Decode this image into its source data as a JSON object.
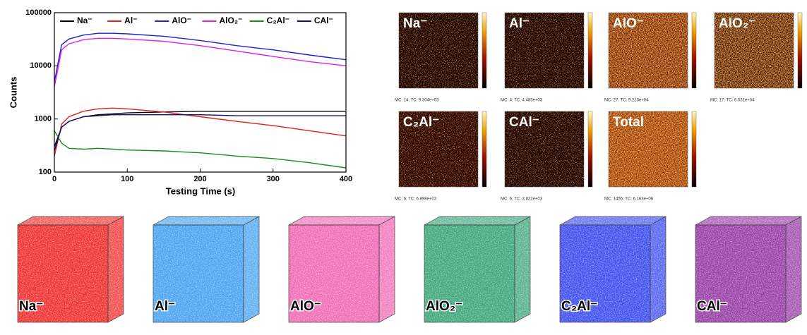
{
  "chart_data": {
    "type": "line",
    "x_label": "Testing Time (s)",
    "y_label": "Counts",
    "log_y": true,
    "legend": "top",
    "grid": false,
    "xlim": [
      0,
      400
    ],
    "xticks": [
      0,
      100,
      200,
      300,
      400
    ],
    "ylim": [
      100,
      100000
    ],
    "yticks": [
      100,
      1000,
      10000,
      100000
    ],
    "x": [
      0,
      10,
      20,
      40,
      60,
      80,
      100,
      150,
      200,
      250,
      300,
      350,
      400
    ],
    "series": [
      {
        "name": "Na⁻",
        "color": "#000000",
        "values": [
          300,
          700,
          900,
          1100,
          1200,
          1250,
          1300,
          1350,
          1400,
          1400,
          1400,
          1400,
          1400
        ]
      },
      {
        "name": "Al⁻",
        "color": "#e0201b",
        "values": [
          200,
          800,
          1100,
          1400,
          1550,
          1600,
          1550,
          1350,
          1100,
          900,
          750,
          600,
          480
        ]
      },
      {
        "name": "AlO⁻",
        "color": "#2020d0",
        "values": [
          5000,
          25000,
          32000,
          38000,
          41000,
          41000,
          40000,
          36000,
          30000,
          24000,
          20000,
          16000,
          13000
        ]
      },
      {
        "name": "AlO₂⁻",
        "color": "#e020e0",
        "values": [
          4000,
          20000,
          26000,
          31000,
          33000,
          33000,
          32000,
          29000,
          24000,
          19000,
          15000,
          12000,
          10000
        ]
      },
      {
        "name": "C₂Al⁻",
        "color": "#1a8c1a",
        "values": [
          600,
          350,
          280,
          270,
          280,
          270,
          260,
          250,
          230,
          200,
          180,
          150,
          120
        ]
      },
      {
        "name": "CAl⁻",
        "color": "#101070",
        "values": [
          250,
          700,
          900,
          1100,
          1150,
          1200,
          1200,
          1200,
          1200,
          1150,
          1150,
          1150,
          1150
        ]
      }
    ]
  },
  "maps": [
    {
      "label": "Na⁻",
      "caption": "MC: 14; TC: 9.304e+03"
    },
    {
      "label": "Al⁻",
      "caption": "MC: 4; TC: 4.485e+03"
    },
    {
      "label": "AlO⁻",
      "caption": "MC: 27; TC: 9.223e+04"
    },
    {
      "label": "AlO₂⁻",
      "caption": "MC: 17; TC: 6.031e+04"
    },
    {
      "label": "C₂Al⁻",
      "caption": "MC: 6; TC: 6.898e+03"
    },
    {
      "label": "CAl⁻",
      "caption": "MC: 6; TC: 3.822e+03"
    },
    {
      "label": "Total",
      "caption": "MC: 1455; TC: 6.163e+06"
    }
  ],
  "cubes": [
    {
      "label": "Na⁻",
      "color": "#f02020"
    },
    {
      "label": "Al⁻",
      "color": "#3a9cf0"
    },
    {
      "label": "AlO⁻",
      "color": "#f060b0"
    },
    {
      "label": "AlO₂⁻",
      "color": "#30a070"
    },
    {
      "label": "C₂Al⁻",
      "color": "#3040f0"
    },
    {
      "label": "CAl⁻",
      "color": "#9030a0"
    }
  ]
}
